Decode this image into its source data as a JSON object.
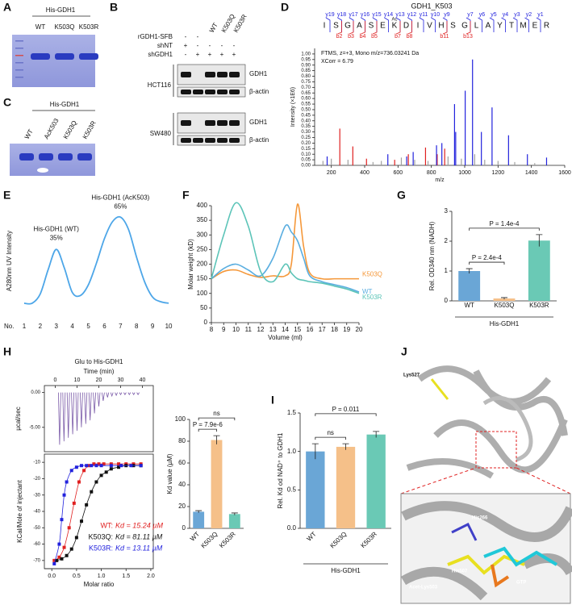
{
  "figure": {
    "A": {
      "letter": "A",
      "construct": "His-GDH1",
      "lanes": [
        "WT",
        "K503Q",
        "K503R"
      ]
    },
    "B": {
      "letter": "B",
      "row_labels": [
        "rGDH1-SFB",
        "shNT",
        "shGDH1"
      ],
      "lanes": [
        "WT",
        "K503Q",
        "K503R"
      ],
      "signs": [
        [
          "-",
          "-"
        ],
        [
          "+",
          "-",
          "-",
          "-",
          "-"
        ],
        [
          "-",
          "+",
          "+",
          "+",
          "+"
        ]
      ],
      "cell_lines": [
        "HCT116",
        "SW480"
      ],
      "blots": [
        "GDH1",
        "β-actin"
      ]
    },
    "C": {
      "letter": "C",
      "construct": "His-GDH1",
      "lanes": [
        "WT",
        "AcK503",
        "K503Q",
        "K503R"
      ]
    },
    "J": {
      "letter": "J",
      "labels": [
        "Lys527",
        "His266",
        "His507",
        "GTP",
        "Acet-Lys503"
      ]
    }
  },
  "chart_data": [
    {
      "type": "spectrum",
      "panel": "D",
      "title": "GDH1_K503",
      "info": [
        "FTMS, z=+3, Mono m/z=736.03241 Da",
        "XCorr = 6.79"
      ],
      "sequence": [
        "I",
        "S",
        "G",
        "A",
        "S",
        "E",
        "K",
        "D",
        "I",
        "V",
        "H",
        "S",
        "G",
        "L",
        "A",
        "Y",
        "T",
        "M",
        "E",
        "R"
      ],
      "modification": "Ac",
      "y_ions": [
        "y19",
        "y18",
        "y17",
        "y16",
        "y15",
        "y14",
        "y13",
        "y12",
        "y11",
        "y10",
        "y9",
        "y7",
        "y6",
        "y5",
        "y4",
        "y3",
        "y2",
        "y1"
      ],
      "b_ions": [
        "b2",
        "b3",
        "b4",
        "b5",
        "b7",
        "b8",
        "b11",
        "b13"
      ],
      "xlabel": "m/z",
      "ylabel": "Intensity (×1E6)",
      "xlim": [
        100,
        1600
      ],
      "xticks": [
        200,
        400,
        600,
        800,
        1000,
        1200,
        1400,
        1600
      ],
      "ylim": [
        0,
        1.05
      ],
      "yticks": [
        {
          "value": 0,
          "label": "0.00"
        },
        0.05,
        {
          "value": 0.1,
          "label": "0.10"
        },
        0.15,
        {
          "value": 0.2,
          "label": "0.20"
        },
        0.25,
        {
          "value": 0.3,
          "label": "0.30"
        },
        0.35,
        {
          "value": 0.4,
          "label": "0.40"
        },
        0.45,
        {
          "value": 0.5,
          "label": "0.50"
        },
        0.55,
        {
          "value": 0.6,
          "label": "0.60"
        },
        0.65,
        {
          "value": 0.7,
          "label": "0.70"
        },
        0.75,
        {
          "value": 0.8,
          "label": "0.80"
        },
        0.85,
        {
          "value": 0.9,
          "label": "0.90"
        },
        0.95,
        {
          "value": 1,
          "label": "1.00"
        }
      ],
      "series": [
        {
          "color": "#a0a0a0",
          "x": [
            150,
            200,
            300,
            450,
            500,
            620,
            700,
            780,
            900,
            980,
            1060,
            1120,
            1200,
            1300,
            1420
          ],
          "values": [
            0.04,
            0.06,
            0.05,
            0.03,
            0.04,
            0.07,
            0.05,
            0.04,
            0.08,
            0.06,
            0.1,
            0.05,
            0.04,
            0.03,
            0.02
          ]
        },
        {
          "color": "#e02020",
          "x": [
            251,
            329,
            411,
            580,
            662,
            765,
            835,
            880
          ],
          "values": [
            0.33,
            0.17,
            0.06,
            0.05,
            0.1,
            0.16,
            0.1,
            0.15
          ]
        },
        {
          "color": "#2222dd",
          "x": [
            175,
            539,
            652,
            691,
            831,
            863,
            939,
            946,
            1003,
            1047,
            1100,
            1164,
            1263,
            1376,
            1491
          ],
          "values": [
            0.08,
            0.1,
            0.08,
            0.12,
            0.18,
            0.2,
            0.55,
            0.3,
            0.67,
            0.95,
            0.3,
            0.52,
            0.27,
            0.1,
            0.07
          ]
        }
      ]
    },
    {
      "type": "line",
      "panel": "E",
      "ylabel": "A280nm UV Intensity",
      "xlabel": "No.",
      "annotations": [
        "His-GDH1 (WT)",
        "35%",
        "His-GDH1 (AcK503)",
        "65%"
      ],
      "color": "#4da6e8",
      "xlim": [
        0.5,
        10.3
      ],
      "ylim": [
        0,
        0.75
      ],
      "xticks": [
        1,
        2,
        3,
        4,
        5,
        6,
        7,
        8,
        9,
        10
      ],
      "x": [
        1,
        1.5,
        2,
        2.5,
        3,
        3.5,
        4,
        4.5,
        5,
        5.5,
        6,
        6.5,
        7,
        7.5,
        8,
        8.5,
        9,
        9.5,
        10
      ],
      "values": [
        0.1,
        0.1,
        0.16,
        0.32,
        0.45,
        0.33,
        0.17,
        0.15,
        0.22,
        0.36,
        0.52,
        0.63,
        0.66,
        0.58,
        0.4,
        0.24,
        0.14,
        0.11,
        0.1
      ]
    },
    {
      "type": "lines",
      "panel": "F",
      "ylabel": "Molar weight (kD)",
      "xlabel": "Volume (ml)",
      "xlim": [
        8,
        20
      ],
      "ylim": [
        0,
        400
      ],
      "xticks": [
        8,
        9,
        10,
        11,
        12,
        13,
        14,
        15,
        16,
        17,
        18,
        19,
        20
      ],
      "yticks": [
        0,
        50,
        100,
        150,
        200,
        250,
        300,
        350,
        400
      ],
      "x": [
        8,
        9,
        10,
        11,
        12,
        13,
        14,
        14.5,
        15,
        15.5,
        16,
        17,
        18,
        19,
        20
      ],
      "series": [
        {
          "name": "K503Q",
          "color": "#f5983a",
          "values": [
            150,
            175,
            180,
            165,
            155,
            160,
            160,
            200,
            405,
            260,
            170,
            150,
            150,
            150,
            150
          ]
        },
        {
          "name": "WT",
          "color": "#5aaee0",
          "values": [
            150,
            185,
            200,
            180,
            160,
            220,
            330,
            310,
            280,
            220,
            160,
            140,
            130,
            120,
            105
          ]
        },
        {
          "name": "K503R",
          "color": "#5cc4b8",
          "values": [
            150,
            300,
            410,
            330,
            175,
            140,
            200,
            170,
            150,
            145,
            140,
            135,
            125,
            115,
            100
          ]
        }
      ]
    },
    {
      "type": "bar",
      "panel": "G",
      "ylabel": "Rel. OD340 nm (NADH)",
      "group_label": "His-GDH1",
      "categories": [
        "WT",
        "K503Q",
        "K503R"
      ],
      "values": [
        1.0,
        0.08,
        2.02
      ],
      "errors": [
        0.08,
        0.03,
        0.2
      ],
      "colors": [
        "#6aa6d6",
        "#f5c089",
        "#6ac9b5"
      ],
      "annotations": [
        "P = 2.4e-4",
        "P = 1.4e-4"
      ],
      "ylim": [
        0,
        3
      ],
      "yticks": [
        0,
        1,
        2,
        3
      ]
    },
    {
      "type": "itc",
      "panel": "H",
      "title": "Glu to His-GDH1",
      "top": {
        "xlabel": "Time (min)",
        "ylabel": "µcal/sec",
        "xlim": [
          -5,
          45
        ],
        "xticks": [
          0,
          10,
          20,
          30,
          40
        ],
        "ylim": [
          -8.5,
          1
        ],
        "yticks": [
          {
            "value": 0,
            "label": "0.00"
          },
          {
            "value": -5,
            "label": "-5.00"
          }
        ],
        "x": [
          2,
          4,
          6,
          8,
          10,
          12,
          14,
          16,
          18,
          20,
          22,
          24,
          26,
          28,
          30,
          32,
          34,
          36,
          38
        ],
        "values": [
          -7.5,
          -7,
          -6.5,
          -6,
          -5.5,
          -5,
          -4.5,
          -4,
          -3,
          -2,
          -1.2,
          -0.7,
          -0.5,
          -0.4,
          -0.3,
          -0.3,
          -0.3,
          -0.3,
          -0.3
        ]
      },
      "bottom": {
        "xlabel": "Molar ratio",
        "ylabel": "KCal/Mole of injectant",
        "xlim": [
          -0.15,
          2.05
        ],
        "xticks": [
          {
            "value": 0,
            "label": "0.0"
          },
          0.5,
          {
            "value": 1,
            "label": "1.0"
          },
          1.5,
          {
            "value": 2,
            "label": "2.0"
          }
        ],
        "ylim": [
          -75,
          -5
        ],
        "yticks": [
          -10,
          -20,
          -30,
          -40,
          -50,
          -60,
          -70
        ],
        "series": [
          {
            "name": "WT:",
            "kd_label": "Kd = 15.24 µM",
            "color": "#e02020",
            "x": [
              0.05,
              0.15,
              0.25,
              0.35,
              0.45,
              0.55,
              0.65,
              0.75,
              0.85,
              0.95,
              1.05,
              1.2,
              1.35,
              1.5,
              1.65,
              1.8
            ],
            "values": [
              -70,
              -68,
              -62,
              -50,
              -35,
              -22,
              -15,
              -12,
              -11,
              -11,
              -11,
              -11,
              -11,
              -11,
              -11,
              -11
            ]
          },
          {
            "name": "K503Q:",
            "kd_label": "Kd = 81.11 µM",
            "color": "#111111",
            "x": [
              0.1,
              0.2,
              0.3,
              0.4,
              0.5,
              0.6,
              0.7,
              0.8,
              0.9,
              1.0,
              1.1,
              1.2,
              1.35,
              1.5,
              1.65,
              1.8
            ],
            "values": [
              -70,
              -69,
              -67,
              -63,
              -56,
              -46,
              -36,
              -28,
              -22,
              -18,
              -16,
              -14,
              -13,
              -12,
              -12,
              -12
            ]
          },
          {
            "name": "K503R:",
            "kd_label": "Kd = 13.11 µM",
            "color": "#2222dd",
            "x": [
              0.05,
              0.15,
              0.2,
              0.25,
              0.3,
              0.4,
              0.5,
              0.6,
              0.7,
              0.8,
              0.9,
              1.0,
              1.2,
              1.4,
              1.6,
              1.8
            ],
            "values": [
              -72,
              -60,
              -45,
              -30,
              -22,
              -15,
              -13,
              -12,
              -12,
              -12,
              -12,
              -12,
              -12,
              -12,
              -12,
              -12
            ]
          }
        ]
      }
    },
    {
      "type": "bar",
      "panel": "",
      "ylabel": "Kd value (µM)",
      "categories": [
        "WT",
        "K503Q",
        "K503R"
      ],
      "values": [
        15.24,
        81.11,
        13.11
      ],
      "errors": [
        1,
        4,
        1
      ],
      "colors": [
        "#6aa6d6",
        "#f5c089",
        "#6ac9b5"
      ],
      "annotations": [
        "P = 7.9e-6",
        "ns"
      ],
      "ylim": [
        0,
        100
      ],
      "yticks": [
        0,
        20,
        40,
        60,
        80,
        100
      ]
    },
    {
      "type": "bar",
      "panel": "I",
      "ylabel": "Rel. Kd od NAD⁺ to GDH1",
      "group_label": "His-GDH1",
      "categories": [
        "WT",
        "K503Q",
        "K503R"
      ],
      "values": [
        1.0,
        1.06,
        1.22
      ],
      "errors": [
        0.1,
        0.04,
        0.04
      ],
      "colors": [
        "#6aa6d6",
        "#f5c089",
        "#6ac9b5"
      ],
      "annotations": [
        "P = 0.011",
        "ns"
      ],
      "ylim": [
        0,
        1.5
      ],
      "yticks": [
        {
          "value": 0,
          "label": "0.0"
        },
        0.5,
        {
          "value": 1,
          "label": "1.0"
        },
        1.5
      ]
    }
  ]
}
